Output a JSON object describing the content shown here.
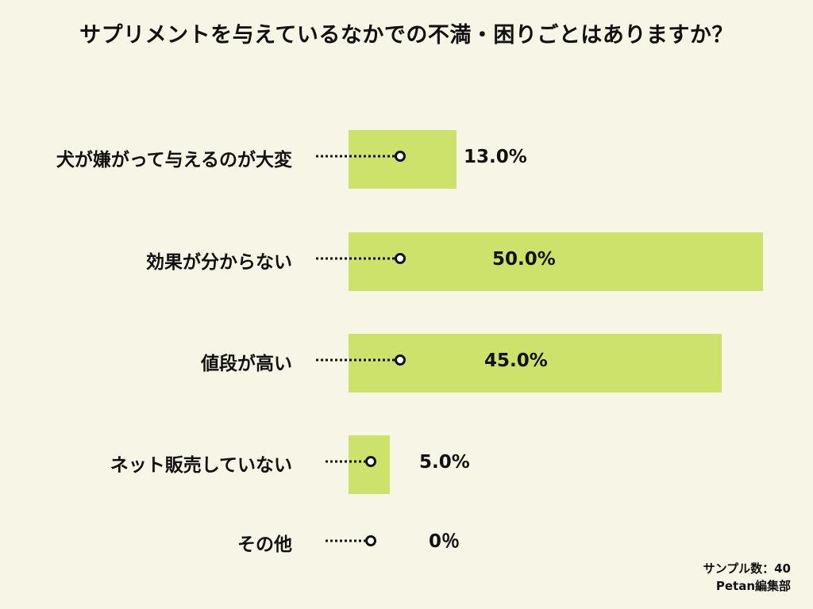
{
  "title": "サプリメントを与えているなかでの不満・困りごとはありますか？",
  "colors": {
    "background": "#f7f6e6",
    "bar": "#cde26a",
    "text": "#111111"
  },
  "chart_data": {
    "type": "bar",
    "orientation": "horizontal",
    "title": "サプリメントを与えているなかでの不満・困りごとはありますか？",
    "categories": [
      "犬が嫌がって与えるのが大変",
      "効果が分からない",
      "値段が高い",
      "ネット販売していない",
      "その他"
    ],
    "values": [
      13.0,
      50.0,
      45.0,
      5.0,
      0
    ],
    "value_labels": [
      "13.0%",
      "50.0%",
      "45.0%",
      "5.0%",
      "0％"
    ],
    "xlim": [
      0,
      50
    ],
    "grid": false,
    "legend": "none"
  },
  "footer": {
    "sample": "サンプル数：40",
    "source": "Petan編集部"
  }
}
